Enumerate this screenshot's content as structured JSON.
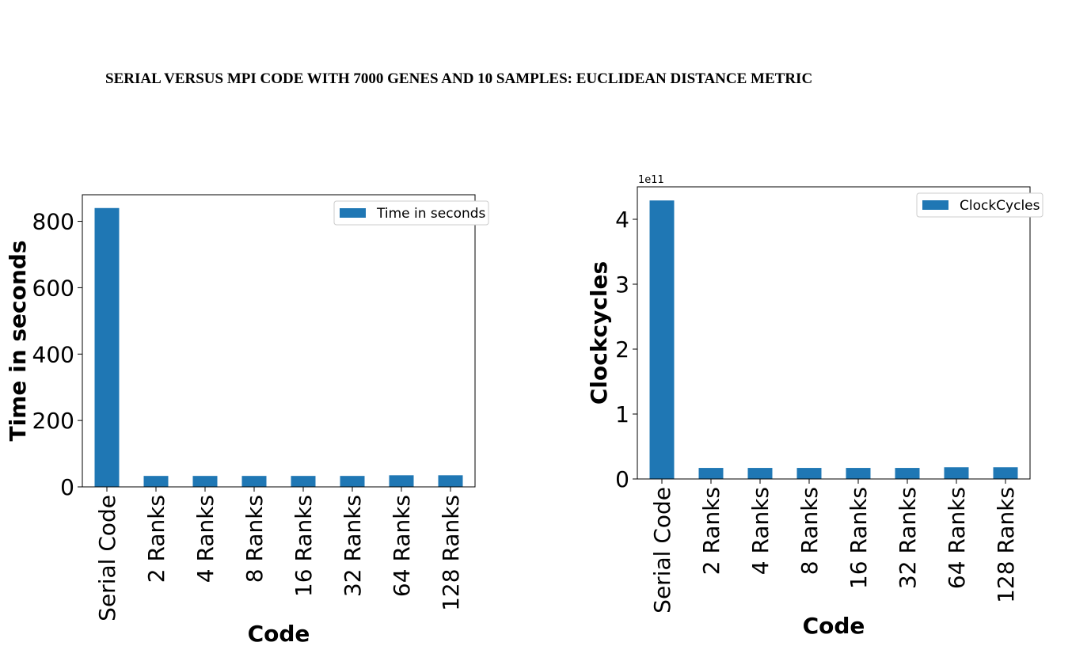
{
  "page": {
    "title": "SERIAL VERSUS MPI CODE WITH 7000 GENES AND 10 SAMPLES: EUCLIDEAN DISTANCE METRIC"
  },
  "colors": {
    "bar": "#1f77b4",
    "axis": "#000000",
    "legend_border": "#cccccc"
  },
  "chart_data": [
    {
      "type": "bar",
      "categories": [
        "Serial Code",
        "2 Ranks",
        "4 Ranks",
        "8 Ranks",
        "16 Ranks",
        "32 Ranks",
        "64 Ranks",
        "128 Ranks"
      ],
      "series": [
        {
          "name": "Time in seconds",
          "values": [
            840,
            33,
            33,
            33,
            33,
            33,
            35,
            35
          ]
        }
      ],
      "xlabel": "Code",
      "ylabel": "Time in seconds",
      "ylim": [
        0,
        880
      ],
      "yticks": [
        0,
        200,
        400,
        600,
        800
      ],
      "ytick_labels": [
        "0",
        "200",
        "400",
        "600",
        "800"
      ],
      "offset_text": "",
      "legend": "top-right",
      "grid": false
    },
    {
      "type": "bar",
      "categories": [
        "Serial Code",
        "2 Ranks",
        "4 Ranks",
        "8 Ranks",
        "16 Ranks",
        "32 Ranks",
        "64 Ranks",
        "128 Ranks"
      ],
      "series": [
        {
          "name": "ClockCycles",
          "values": [
            429000000000,
            17000000000,
            17000000000,
            17000000000,
            17000000000,
            17000000000,
            18000000000,
            18000000000
          ]
        }
      ],
      "xlabel": "Code",
      "ylabel": "Clockcycles",
      "ylim": [
        0,
        450000000000
      ],
      "yticks": [
        0,
        100000000000,
        200000000000,
        300000000000,
        400000000000
      ],
      "ytick_labels": [
        "0",
        "1",
        "2",
        "3",
        "4"
      ],
      "offset_text": "1e11",
      "legend": "top-right",
      "grid": false
    }
  ]
}
